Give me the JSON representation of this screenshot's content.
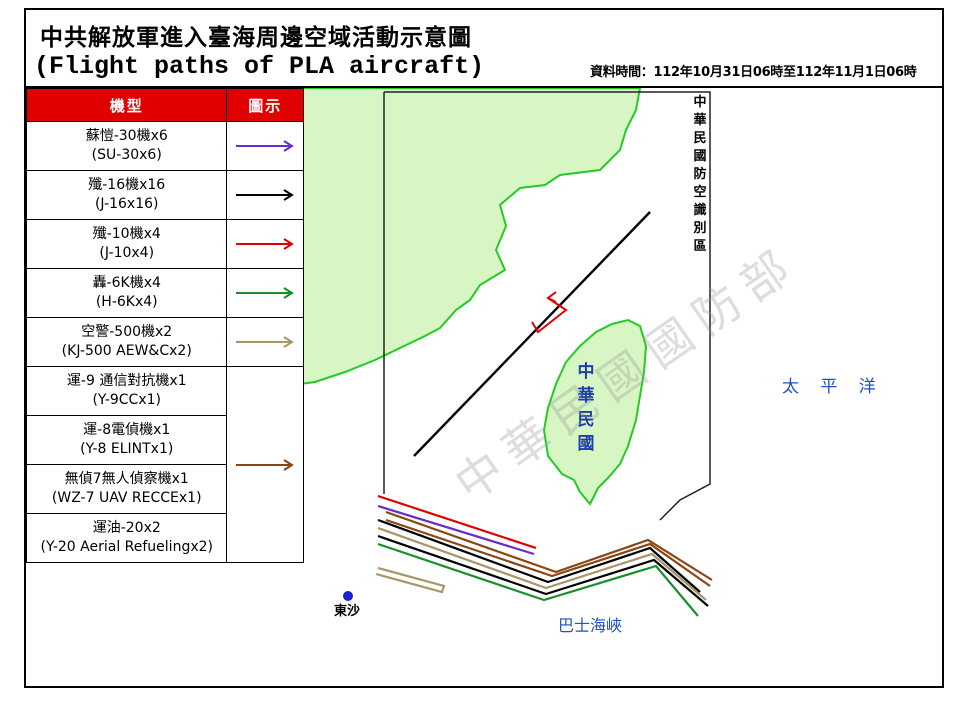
{
  "header": {
    "title_zh": "中共解放軍進入臺海周邊空域活動示意圖",
    "title_en": "(Flight paths of PLA aircraft)",
    "data_time": "資料時間：112年10月31日06時至112年11月1日06時"
  },
  "legend": {
    "col_type": "機型",
    "col_symbol": "圖示",
    "rows": [
      {
        "zh": "蘇愷-30機x6",
        "en": "(SU-30x6)",
        "color": "#6a2bc8"
      },
      {
        "zh": "殲-16機x16",
        "en": "(J-16x16)",
        "color": "#000000"
      },
      {
        "zh": "殲-10機x4",
        "en": "(J-10x4)",
        "color": "#e00000"
      },
      {
        "zh": "轟-6K機x4",
        "en": "(H-6Kx4)",
        "color": "#16902a"
      },
      {
        "zh": "空警-500機x2",
        "en": "(KJ-500 AEW&Cx2)",
        "color": "#a8956a"
      },
      {
        "zh": "運-9 通信對抗機x1",
        "en": "(Y-9CCx1)",
        "color": "#8b4513"
      },
      {
        "zh": "運-8電偵機x1",
        "en": "(Y-8 ELINTx1)",
        "color": "#8b4513"
      },
      {
        "zh": "無偵7無人偵察機x1",
        "en": "(WZ-7 UAV RECCEx1)",
        "color": "#8b4513"
      },
      {
        "zh": "運油-20x2",
        "en": "(Y-20 Aerial Refuelingx2)",
        "color": "#8b4513"
      }
    ]
  },
  "map": {
    "adiz_label": "中華民國防空識別區",
    "roc_label": "中華民國",
    "pacific_label": "太 平 洋",
    "bashi_label": "巴士海峽",
    "dongsha_label": "東沙",
    "watermark": "中華民國國防部",
    "land_color": "#d8f5c4",
    "coast_color": "#22cc22"
  }
}
